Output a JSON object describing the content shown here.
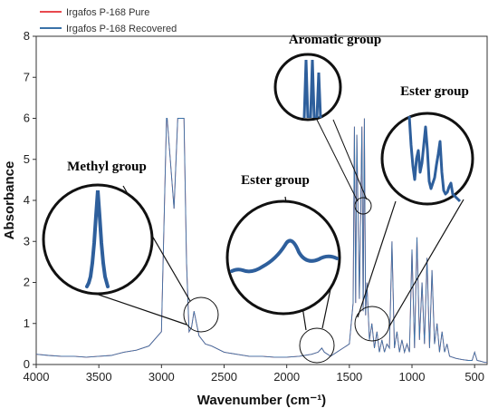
{
  "colors": {
    "pure": "#e8494e",
    "recovered": "#3a72a8",
    "inset": "#2e5f9c",
    "axis": "#333333"
  },
  "chart_data": {
    "type": "line",
    "xlabel": "Wavenumber (cm⁻¹)",
    "ylabel": "Absorbance",
    "xlim": [
      4000,
      400
    ],
    "ylim": [
      0,
      8
    ],
    "x_reversed": true,
    "xticks": [
      "4000",
      "3500",
      "3000",
      "2500",
      "2000",
      "1500",
      "1000",
      "500"
    ],
    "yticks": [
      "0",
      "1",
      "2",
      "3",
      "4",
      "5",
      "6",
      "7",
      "8"
    ],
    "legend_position": "top-left",
    "series": [
      {
        "name": "Irgafos P-168 Pure",
        "color": "#e8494e",
        "x": [
          4000,
          3900,
          3800,
          3700,
          3600,
          3500,
          3400,
          3300,
          3200,
          3100,
          3000,
          2960,
          2955,
          2900,
          2870,
          2865,
          2820,
          2800,
          2780,
          2760,
          2740,
          2700,
          2650,
          2600,
          2500,
          2400,
          2300,
          2200,
          2100,
          2000,
          1900,
          1800,
          1750,
          1720,
          1700,
          1650,
          1600,
          1500,
          1470,
          1460,
          1450,
          1440,
          1420,
          1400,
          1390,
          1380,
          1370,
          1360,
          1340,
          1320,
          1300,
          1280,
          1260,
          1240,
          1220,
          1200,
          1180,
          1160,
          1140,
          1120,
          1100,
          1080,
          1060,
          1040,
          1020,
          1000,
          980,
          960,
          940,
          920,
          900,
          880,
          860,
          840,
          820,
          800,
          780,
          760,
          740,
          720,
          700,
          650,
          600,
          550,
          520,
          500,
          480,
          450,
          420,
          400
        ],
        "y": [
          0.25,
          0.22,
          0.2,
          0.2,
          0.18,
          0.2,
          0.22,
          0.3,
          0.35,
          0.45,
          0.8,
          6.0,
          6.0,
          3.8,
          6.0,
          6.0,
          6.0,
          2.5,
          0.8,
          0.9,
          1.3,
          0.7,
          0.5,
          0.45,
          0.3,
          0.25,
          0.2,
          0.2,
          0.18,
          0.18,
          0.2,
          0.25,
          0.3,
          0.4,
          0.3,
          0.2,
          0.3,
          0.5,
          1.5,
          5.8,
          1.5,
          5.6,
          1.6,
          5.8,
          1.3,
          6.0,
          1.2,
          2.0,
          0.6,
          1.0,
          0.4,
          0.8,
          0.3,
          0.6,
          0.3,
          0.5,
          0.4,
          3.0,
          0.4,
          0.8,
          0.3,
          0.6,
          0.3,
          0.5,
          0.3,
          2.8,
          0.4,
          3.1,
          0.6,
          2.0,
          0.5,
          2.6,
          0.4,
          2.3,
          0.5,
          1.0,
          0.3,
          0.8,
          0.3,
          0.5,
          0.2,
          0.15,
          0.12,
          0.1,
          0.1,
          0.3,
          0.1,
          0.08,
          0.05,
          0.05
        ]
      },
      {
        "name": "Irgafos P-168 Recovered",
        "color": "#3a72a8",
        "x": [
          4000,
          3900,
          3800,
          3700,
          3600,
          3500,
          3400,
          3300,
          3200,
          3100,
          3000,
          2960,
          2955,
          2900,
          2870,
          2865,
          2820,
          2800,
          2780,
          2760,
          2740,
          2700,
          2650,
          2600,
          2500,
          2400,
          2300,
          2200,
          2100,
          2000,
          1900,
          1800,
          1750,
          1720,
          1700,
          1650,
          1600,
          1500,
          1470,
          1460,
          1450,
          1440,
          1420,
          1400,
          1390,
          1380,
          1370,
          1360,
          1340,
          1320,
          1300,
          1280,
          1260,
          1240,
          1220,
          1200,
          1180,
          1160,
          1140,
          1120,
          1100,
          1080,
          1060,
          1040,
          1020,
          1000,
          980,
          960,
          940,
          920,
          900,
          880,
          860,
          840,
          820,
          800,
          780,
          760,
          740,
          720,
          700,
          650,
          600,
          550,
          520,
          500,
          480,
          450,
          420,
          400
        ],
        "y": [
          0.25,
          0.22,
          0.2,
          0.2,
          0.18,
          0.2,
          0.22,
          0.3,
          0.35,
          0.45,
          0.8,
          6.0,
          6.0,
          3.8,
          6.0,
          6.0,
          6.0,
          2.5,
          0.8,
          0.9,
          1.3,
          0.7,
          0.5,
          0.45,
          0.3,
          0.25,
          0.2,
          0.2,
          0.18,
          0.18,
          0.2,
          0.25,
          0.3,
          0.4,
          0.3,
          0.2,
          0.3,
          0.5,
          1.5,
          5.8,
          1.5,
          5.6,
          1.6,
          5.8,
          1.3,
          6.0,
          1.2,
          2.0,
          0.6,
          1.0,
          0.4,
          0.8,
          0.3,
          0.6,
          0.3,
          0.5,
          0.4,
          3.0,
          0.4,
          0.8,
          0.3,
          0.6,
          0.3,
          0.5,
          0.3,
          2.8,
          0.4,
          3.1,
          0.6,
          2.0,
          0.5,
          2.6,
          0.4,
          2.3,
          0.5,
          1.0,
          0.3,
          0.8,
          0.3,
          0.5,
          0.2,
          0.15,
          0.12,
          0.1,
          0.1,
          0.3,
          0.1,
          0.08,
          0.05,
          0.05
        ]
      }
    ],
    "annotations": [
      {
        "label": "Methyl group",
        "target": [
          2725,
          1.2
        ]
      },
      {
        "label": "Ester group",
        "target": [
          1730,
          0.4
        ]
      },
      {
        "label": "Aromatic group",
        "target": [
          1390,
          3.9
        ]
      },
      {
        "label": "Ester group",
        "target": [
          1290,
          0.95
        ]
      }
    ]
  }
}
